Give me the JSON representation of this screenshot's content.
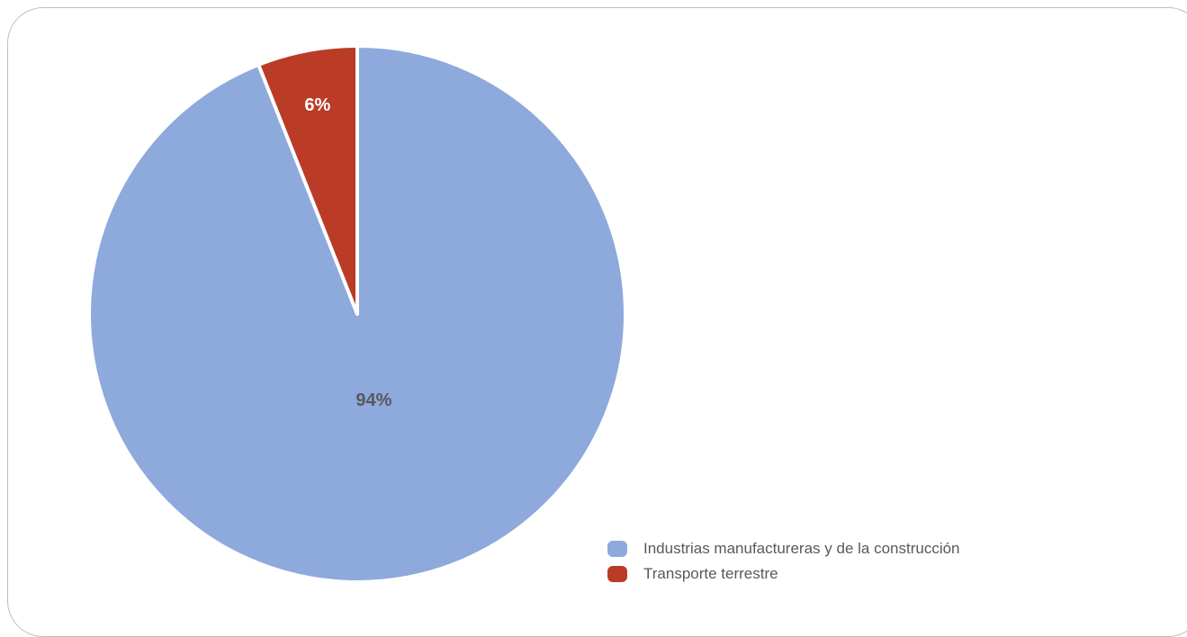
{
  "chart_data": {
    "type": "pie",
    "title": "",
    "slices": [
      {
        "name": "Industrias manufactureras y de la construcción",
        "value": 94,
        "label": "94%",
        "color": "#8EA9DB",
        "label_color": "#595959"
      },
      {
        "name": "Transporte terrestre",
        "value": 6,
        "label": "6%",
        "color": "#BA3B26",
        "label_color": "#ffffff"
      }
    ],
    "start_angle_deg": 0,
    "direction": "clockwise",
    "legend_position": "bottom-right"
  }
}
